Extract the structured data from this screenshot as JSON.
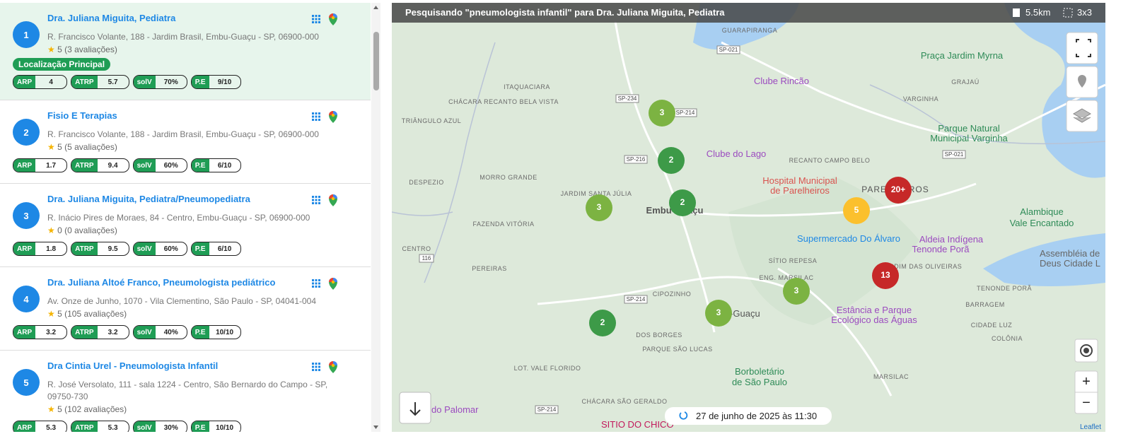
{
  "results": [
    {
      "rank": 1,
      "name": "Dra. Juliana Miguita, Pediatra",
      "address": "R. Francisco Volante, 188 - Jardim Brasil, Embu-Guaçu - SP, 06900-000",
      "rating": 5,
      "reviews": "(3 avaliações)",
      "badge": "Localização Principal",
      "metrics": [
        {
          "label": "ARP",
          "value": "4"
        },
        {
          "label": "ATRP",
          "value": "5.7"
        },
        {
          "label": "solV",
          "value": "70%"
        },
        {
          "label": "P.E",
          "value": "9/10"
        }
      ]
    },
    {
      "rank": 2,
      "name": "Fisio E Terapias",
      "address": "R. Francisco Volante, 188 - Jardim Brasil, Embu-Guaçu - SP, 06900-000",
      "rating": 5,
      "reviews": "(5 avaliações)",
      "metrics": [
        {
          "label": "ARP",
          "value": "1.7"
        },
        {
          "label": "ATRP",
          "value": "9.4"
        },
        {
          "label": "solV",
          "value": "60%"
        },
        {
          "label": "P.E",
          "value": "6/10"
        }
      ]
    },
    {
      "rank": 3,
      "name": "Dra. Juliana Miguita, Pediatra/Pneumopediatra",
      "address": "R. Inácio Pires de Moraes, 84 - Centro, Embu-Guaçu - SP, 06900-000",
      "rating": 0,
      "reviews": "(0 avaliações)",
      "metrics": [
        {
          "label": "ARP",
          "value": "1.8"
        },
        {
          "label": "ATRP",
          "value": "9.5"
        },
        {
          "label": "solV",
          "value": "60%"
        },
        {
          "label": "P.E",
          "value": "6/10"
        }
      ]
    },
    {
      "rank": 4,
      "name": "Dra. Juliana Altoé Franco, Pneumologista pediátrico",
      "address": "Av. Onze de Junho, 1070 - Vila Clementino, São Paulo - SP, 04041-004",
      "rating": 5,
      "reviews": "(105 avaliações)",
      "metrics": [
        {
          "label": "ARP",
          "value": "3.2"
        },
        {
          "label": "ATRP",
          "value": "3.2"
        },
        {
          "label": "solV",
          "value": "40%"
        },
        {
          "label": "P.E",
          "value": "10/10"
        }
      ]
    },
    {
      "rank": 5,
      "name": "Dra Cintia Urel - Pneumologista Infantil",
      "address": "R. José Versolato, 111 - sala 1224 - Centro, São Bernardo do Campo - SP, 09750-730",
      "rating": 5,
      "reviews": "(102 avaliações)",
      "metrics": [
        {
          "label": "ARP",
          "value": "5.3"
        },
        {
          "label": "ATRP",
          "value": "5.3"
        },
        {
          "label": "solV",
          "value": "30%"
        },
        {
          "label": "P.E",
          "value": "10/10"
        }
      ]
    }
  ],
  "map": {
    "header": {
      "summary": "Pesquisando \"pneumologista infantil\" para Dra. Juliana Miguita, Pediatra",
      "distance": "5.5km",
      "grid": "3x3"
    },
    "clusters": [
      "3",
      "2",
      "3",
      "2",
      "5",
      "20+",
      "13",
      "3",
      "3",
      "2"
    ],
    "roads": [
      "SP-021",
      "SP-234",
      "SP-214",
      "SP-216",
      "116",
      "SP-021",
      "SP-214",
      "SP-214"
    ],
    "places": [
      "GUARAPIRANGA",
      "ITAQUACIARA",
      "CHÁCARA RECANTO BELA VISTA",
      "TRIÂNGULO AZUL",
      "MORRO GRANDE",
      "DESPEZIO",
      "JARDIM SANTA JÚLIA",
      "FAZENDA VITÓRIA",
      "CENTRO",
      "PEREIRAS",
      "SÍTIO REPESA",
      "ENG. MARSILAC",
      "CIPOZINHO",
      "DOS BORGES",
      "PARQUE SÃO LUCAS",
      "LOT. VALE FLORIDO",
      "CHÁCARA SÃO GERALDO",
      "JARDIM DAS OLIVEIRAS",
      "VARGINHA",
      "GRAJAÚ",
      "RECANTO CAMPO BELO",
      "TENONDE PORÃ",
      "BARRAGEM",
      "CIDADE LUZ",
      "COLÔNIA",
      "MARSILAC",
      "Embu-Guaçu",
      "Cipó-Guaçu",
      "PARELHEIROS"
    ],
    "pois": [
      "Clube Rincão",
      "Praça Jardim Myrna",
      "Parque Natural",
      "Municipal Varginha",
      "Clube do Lago",
      "Hospital Municipal",
      "de Parelheiros",
      "Supermercado Do Álvaro",
      "Alambique",
      "Vale Encantado",
      "Aldeia Indígena",
      "Tenonde Porã",
      "Assembléia de",
      "Deus Cidade L",
      "Estância e Parque",
      "Ecológico das Águas",
      "Borboletário",
      "de São Paulo",
      "SITIO DO CHICO",
      "do Palomar"
    ],
    "controls": {
      "zoom_in": "+",
      "zoom_out": "−"
    },
    "date": "27 de junho de 2025 às 11:30",
    "attribution": "Leaflet"
  }
}
